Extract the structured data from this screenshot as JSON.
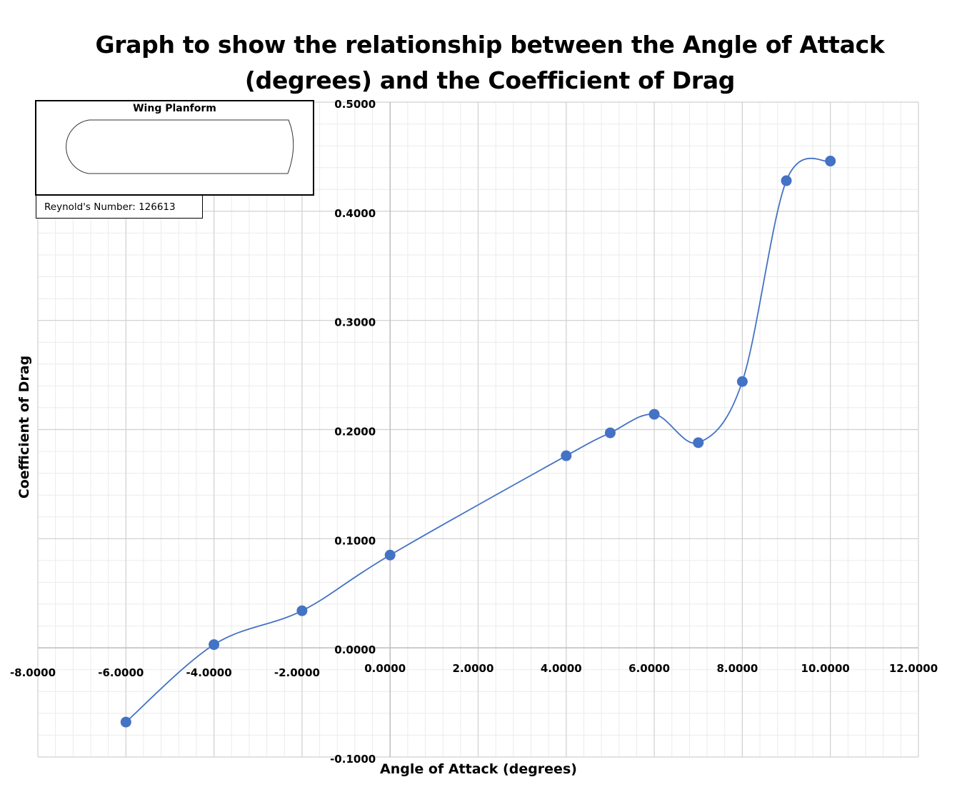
{
  "chart_data": {
    "type": "scatter",
    "title_line1": "Graph to show the relationship between the Angle of Attack",
    "title_line2": "(degrees) and the Coefficient of Drag",
    "xlabel": "Angle of Attack (degrees)",
    "ylabel": "Coefficient of Drag",
    "xlim": [
      -8,
      12
    ],
    "ylim": [
      -0.1,
      0.5
    ],
    "x_major_step": 2,
    "y_major_step": 0.1,
    "x_tick_labels": [
      "-8.0000",
      "-6.0000",
      "-4.0000",
      "-2.0000",
      "0.0000",
      "2.0000",
      "4.0000",
      "6.0000",
      "8.0000",
      "10.0000",
      "12.0000"
    ],
    "y_tick_labels": [
      "-0.1000",
      "0.0000",
      "0.1000",
      "0.2000",
      "0.3000",
      "0.4000",
      "0.5000"
    ],
    "grid": true,
    "smoothed_line": true,
    "series": [
      {
        "color": "#4472C4",
        "x": [
          -6,
          -4,
          -2,
          0,
          4,
          5,
          6,
          7,
          8,
          9,
          10
        ],
        "y": [
          -0.068,
          0.003,
          0.034,
          0.085,
          0.176,
          0.197,
          0.214,
          0.188,
          0.244,
          0.428,
          0.446
        ]
      }
    ]
  },
  "annotations": {
    "wing_planform_title": "Wing Planform",
    "reynolds_label": "Reynold's Number: 126613"
  }
}
